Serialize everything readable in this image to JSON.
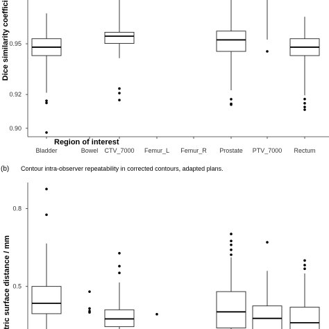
{
  "chart_data": [
    {
      "type": "box",
      "panel": "",
      "caption": "",
      "xlabel": "Region of interest",
      "ylabel": "Dice similarity coefficient",
      "ylim": [
        0.895,
        0.98
      ],
      "yticks": [
        0.9,
        0.92,
        0.95
      ],
      "ytick_labels": [
        "0.90",
        "0.92",
        "0.95"
      ],
      "categories": [
        "Bladder",
        "Bowel",
        "CTV_7000",
        "Femur_L",
        "Femur_R",
        "Prostate",
        "PTV_7000",
        "Rectum"
      ],
      "boxes": [
        {
          "category": "Bladder",
          "whisker_low": 0.921,
          "q1": 0.943,
          "median": 0.948,
          "q3": 0.953,
          "whisker_high": 0.968,
          "outliers": [
            0.915,
            0.9163,
            0.8975
          ]
        },
        {
          "category": "Bowel",
          "outliers": []
        },
        {
          "category": "CTV_7000",
          "whisker_low": 0.9415,
          "q1": 0.9502,
          "median": 0.9545,
          "q3": 0.9568,
          "whisker_high": 0.978,
          "outliers": [
            0.9235,
            0.9208,
            0.9167
          ]
        },
        {
          "category": "Femur_L",
          "outliers": []
        },
        {
          "category": "Femur_R",
          "outliers": []
        },
        {
          "category": "Prostate",
          "whisker_low": 0.9225,
          "q1": 0.9455,
          "median": 0.9523,
          "q3": 0.9575,
          "whisker_high": 0.978,
          "outliers": [
            0.9172,
            0.9145,
            0.914
          ]
        },
        {
          "category": "PTV_7000",
          "whisker_low": 0.9525,
          "whisker_high": 0.978,
          "outliers": [
            0.9455
          ]
        },
        {
          "category": "Rectum",
          "whisker_low": 0.9195,
          "q1": 0.943,
          "median": 0.948,
          "q3": 0.953,
          "whisker_high": 0.966,
          "outliers": [
            0.9173,
            0.9148,
            0.9126,
            0.911
          ]
        }
      ]
    },
    {
      "type": "box",
      "panel": "(b)",
      "caption": "Contour intra-observer repeatability in corrected contours, adapted plans.",
      "xlabel": "",
      "ylabel": "Mean symmetric surface distance / mm",
      "ylabel_visible": "etric surface distance / mm",
      "ylim": [
        0.32,
        0.9
      ],
      "yticks": [
        0.5,
        0.8
      ],
      "ytick_labels": [
        "0.5",
        "0.8"
      ],
      "categories": [
        "Bladder",
        "Bowel",
        "CTV_7000",
        "Femur_L",
        "Femur_R",
        "Prostate",
        "PTV_7000",
        "Rectum"
      ],
      "boxes": [
        {
          "category": "Bladder",
          "whisker_low": 0.32,
          "q1": 0.395,
          "median": 0.435,
          "q3": 0.5,
          "whisker_high": 0.665,
          "outliers": [
            0.776,
            0.875
          ]
        },
        {
          "category": "Bowel",
          "outliers": [
            0.48,
            0.415,
            0.405,
            0.4
          ]
        },
        {
          "category": "CTV_7000",
          "whisker_low": 0.32,
          "q1": 0.345,
          "median": 0.375,
          "q3": 0.41,
          "whisker_high": 0.515,
          "outliers": [
            0.552,
            0.578,
            0.628
          ]
        },
        {
          "category": "Femur_L",
          "outliers": [
            0.393
          ]
        },
        {
          "category": "Femur_R",
          "outliers": []
        },
        {
          "category": "Prostate",
          "whisker_low": 0.32,
          "q1": 0.34,
          "median": 0.402,
          "q3": 0.48,
          "whisker_high": 0.612,
          "outliers": [
            0.622,
            0.641,
            0.66,
            0.675,
            0.702
          ]
        },
        {
          "category": "PTV_7000",
          "whisker_low": 0.32,
          "q1": 0.33,
          "median": 0.377,
          "q3": 0.425,
          "whisker_high": 0.56,
          "outliers": [
            0.67
          ]
        },
        {
          "category": "Rectum",
          "whisker_low": 0.32,
          "q1": 0.33,
          "median": 0.36,
          "q3": 0.42,
          "whisker_high": 0.55,
          "outliers": [
            0.568,
            0.582,
            0.6
          ]
        }
      ]
    }
  ]
}
